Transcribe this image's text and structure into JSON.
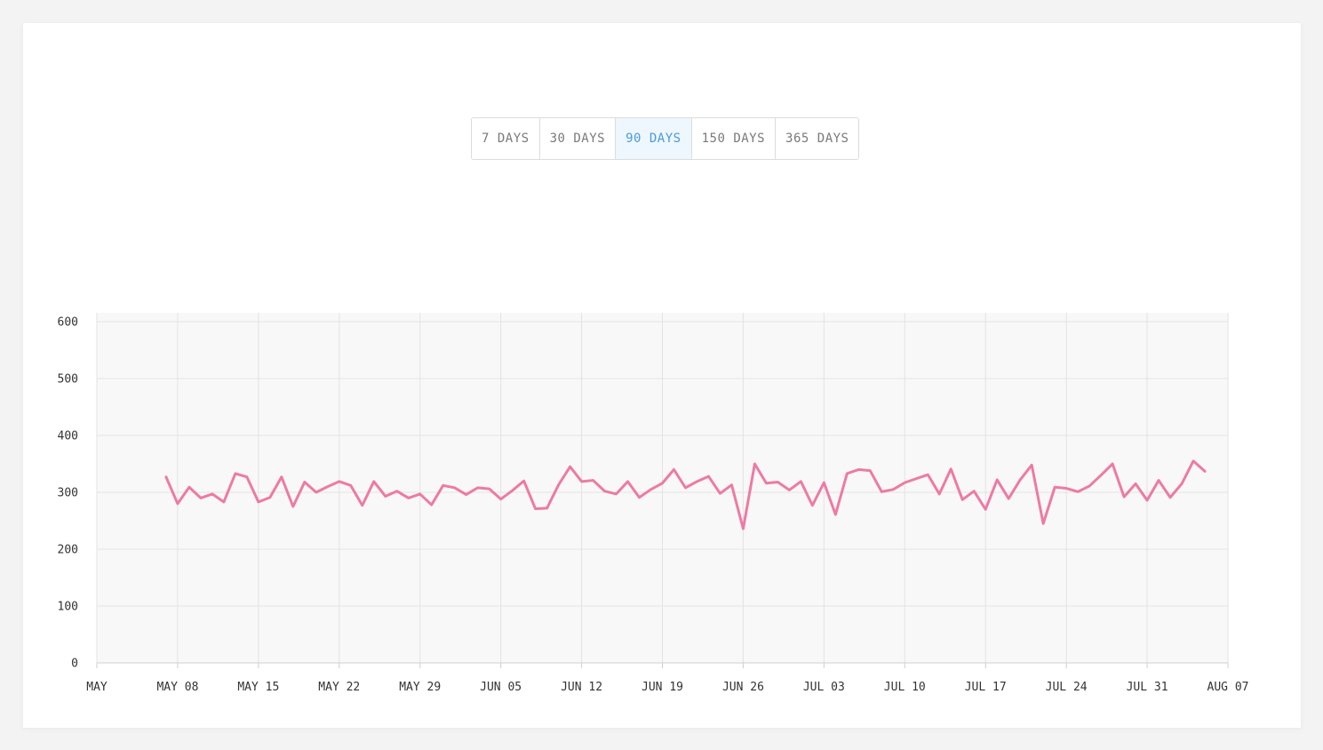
{
  "range_selector": {
    "options": [
      {
        "label": "7 DAYS",
        "active": false
      },
      {
        "label": "30 DAYS",
        "active": false
      },
      {
        "label": "90 DAYS",
        "active": true
      },
      {
        "label": "150 DAYS",
        "active": false
      },
      {
        "label": "365 DAYS",
        "active": false
      }
    ]
  },
  "colors": {
    "line": "#ee7aa3",
    "plot_background": "#f8f8f8",
    "grid": "#e3e3e3",
    "active_option": "#4a9be0"
  },
  "chart_data": {
    "type": "line",
    "title": "",
    "xlabel": "",
    "ylabel": "",
    "x_start_label": "MAY",
    "x_start_date": "2022-05-01",
    "x_end_date": "2022-08-07",
    "ylim": [
      0,
      600
    ],
    "yticks": [
      0,
      100,
      200,
      300,
      400,
      500,
      600
    ],
    "xticks": [
      {
        "date": "2022-05-01",
        "label": "MAY"
      },
      {
        "date": "2022-05-08",
        "label": "MAY 08"
      },
      {
        "date": "2022-05-15",
        "label": "MAY 15"
      },
      {
        "date": "2022-05-22",
        "label": "MAY 22"
      },
      {
        "date": "2022-05-29",
        "label": "MAY 29"
      },
      {
        "date": "2022-06-05",
        "label": "JUN 05"
      },
      {
        "date": "2022-06-12",
        "label": "JUN 12"
      },
      {
        "date": "2022-06-19",
        "label": "JUN 19"
      },
      {
        "date": "2022-06-26",
        "label": "JUN 26"
      },
      {
        "date": "2022-07-03",
        "label": "JUL 03"
      },
      {
        "date": "2022-07-10",
        "label": "JUL 10"
      },
      {
        "date": "2022-07-17",
        "label": "JUL 17"
      },
      {
        "date": "2022-07-24",
        "label": "JUL 24"
      },
      {
        "date": "2022-07-31",
        "label": "JUL 31"
      },
      {
        "date": "2022-08-07",
        "label": "AUG 07"
      }
    ],
    "grid": true,
    "series": [
      {
        "start_date": "2022-05-07",
        "values": [
          327,
          280,
          309,
          290,
          297,
          283,
          333,
          327,
          283,
          291,
          327,
          275,
          318,
          300,
          310,
          319,
          312,
          277,
          319,
          293,
          302,
          290,
          297,
          278,
          312,
          308,
          296,
          308,
          306,
          288,
          303,
          320,
          271,
          272,
          313,
          345,
          319,
          321,
          302,
          297,
          319,
          291,
          305,
          316,
          340,
          308,
          319,
          328,
          298,
          313,
          236,
          350,
          316,
          318,
          304,
          319,
          277,
          317,
          261,
          333,
          340,
          338,
          301,
          305,
          317,
          324,
          331,
          297,
          341,
          287,
          302,
          270,
          322,
          289,
          322,
          348,
          245,
          309,
          307,
          301,
          311,
          330,
          350,
          292,
          315,
          286,
          321,
          291,
          315,
          355,
          337
        ]
      }
    ]
  }
}
